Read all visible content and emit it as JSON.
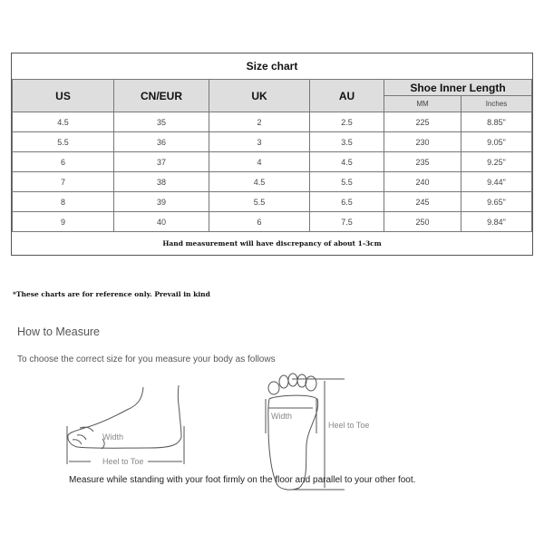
{
  "size_chart": {
    "title": "Size chart",
    "headers": [
      "US",
      "CN/EUR",
      "UK",
      "AU",
      "Shoe Inner Length"
    ],
    "subheaders": [
      "MM",
      "Inches"
    ],
    "rows": [
      [
        "4.5",
        "35",
        "2",
        "2.5",
        "225",
        "8.85\""
      ],
      [
        "5.5",
        "36",
        "3",
        "3.5",
        "230",
        "9.05\""
      ],
      [
        "6",
        "37",
        "4",
        "4.5",
        "235",
        "9.25\""
      ],
      [
        "7",
        "38",
        "4.5",
        "5.5",
        "240",
        "9.44\""
      ],
      [
        "8",
        "39",
        "5.5",
        "6.5",
        "245",
        "9.65\""
      ],
      [
        "9",
        "40",
        "6",
        "7.5",
        "250",
        "9.84\""
      ]
    ],
    "footer": "Hand measurement will have discrepancy of about 1-3cm"
  },
  "note": "*These charts are for reference only. Prevail in kind",
  "how_to": {
    "title": "How to Measure",
    "intro": "To choose the correct size for you measure your body as follows",
    "side_width": "Width",
    "side_length": "Heel to Toe",
    "sole_width": "Width",
    "sole_length": "Heel to Toe",
    "instruction": "Measure while standing with your foot firmly on the floor and parallel to your other foot."
  }
}
